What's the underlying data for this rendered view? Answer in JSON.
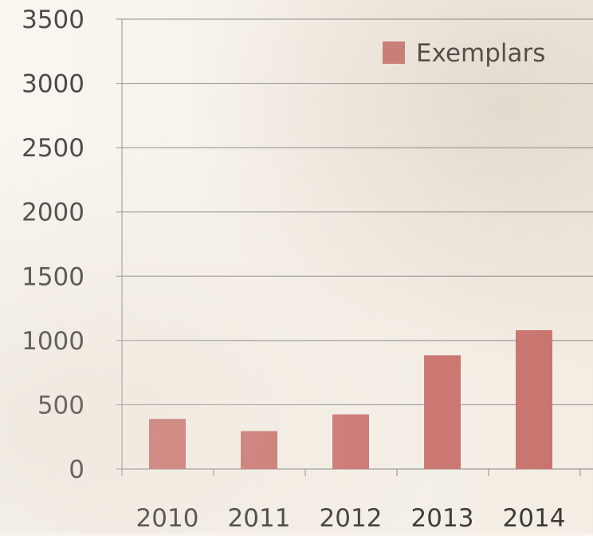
{
  "chart_data": {
    "type": "bar",
    "title": "",
    "xlabel": "",
    "ylabel": "",
    "categories": [
      "2010",
      "2011",
      "2012",
      "2013",
      "2014"
    ],
    "series": [
      {
        "name": "Exemplars",
        "values": [
          390,
          295,
          425,
          885,
          1080
        ],
        "color": "#c0504d"
      }
    ],
    "y_ticks": [
      0,
      500,
      1000,
      1500,
      2000,
      2500,
      3000,
      3500
    ],
    "ylim": [
      0,
      3500
    ],
    "grid": true,
    "legend_position": "top-right",
    "gridline_color": "#808080",
    "axis_color": "#808080"
  }
}
